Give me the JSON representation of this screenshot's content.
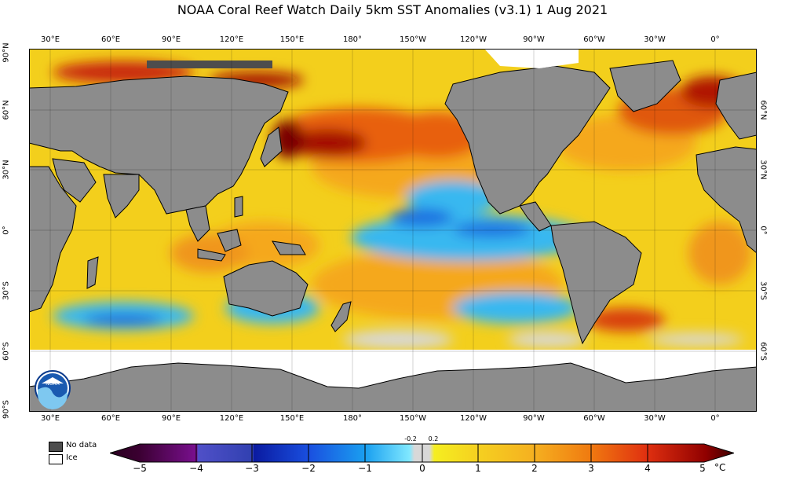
{
  "title": "NOAA Coral Reef Watch Daily 5km SST Anomalies  (v3.1)    1 Aug 2021",
  "lon_labels": [
    "30°E",
    "60°E",
    "90°E",
    "120°E",
    "150°E",
    "180°",
    "150°W",
    "120°W",
    "90°W",
    "60°W",
    "30°W",
    "0°"
  ],
  "lat_labels_left": [
    "90°N",
    "60°N",
    "30°N",
    "0°",
    "30°S",
    "60°S",
    "90°S"
  ],
  "lat_labels_right": [
    "60°N",
    "30°N",
    "0°",
    "30°S",
    "60°S"
  ],
  "legend": {
    "no_data": "No data",
    "ice": "Ice"
  },
  "colorbar": {
    "ticks": [
      "−5",
      "−4",
      "−3",
      "−2",
      "−1",
      "0",
      "1",
      "2",
      "3",
      "4",
      "5"
    ],
    "small_ticks": [
      "-0.2",
      "0.2"
    ],
    "unit": "°C",
    "colors": [
      "#3a0030",
      "#5c0a6e",
      "#2a2ab0",
      "#1a55e0",
      "#20b8f0",
      "#d8d8d8",
      "#f5e81a",
      "#f5b820",
      "#f07a10",
      "#d83010",
      "#900000"
    ]
  },
  "colors": {
    "land": "#8c8c8c",
    "no_data": "#4d4d4d",
    "ice": "#ffffff"
  }
}
